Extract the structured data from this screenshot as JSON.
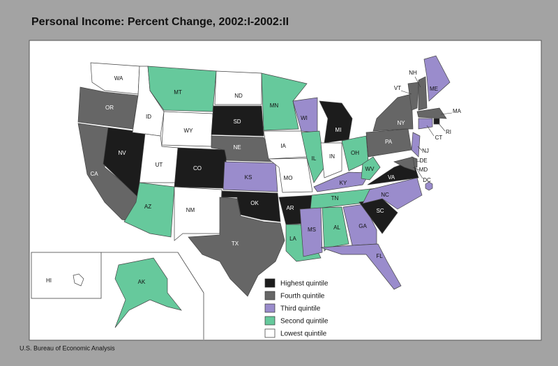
{
  "title": "Personal Income: Percent Change, 2002:I-2002:II",
  "source": "U.S. Bureau of Economic Analysis",
  "legend": [
    {
      "label": "Highest quintile",
      "color": "#1c1c1c"
    },
    {
      "label": "Fourth quintile",
      "color": "#666666"
    },
    {
      "label": "Third quintile",
      "color": "#9a8ccc"
    },
    {
      "label": "Second quintile",
      "color": "#66c99c"
    },
    {
      "label": "Lowest quintile",
      "color": "#ffffff"
    }
  ],
  "states": [
    {
      "label": "WA",
      "quintile": 4
    },
    {
      "label": "OR",
      "quintile": 1
    },
    {
      "label": "CA",
      "quintile": 1
    },
    {
      "label": "NV",
      "quintile": 0
    },
    {
      "label": "ID",
      "quintile": 4
    },
    {
      "label": "MT",
      "quintile": 3
    },
    {
      "label": "WY",
      "quintile": 4
    },
    {
      "label": "UT",
      "quintile": 4
    },
    {
      "label": "CO",
      "quintile": 0
    },
    {
      "label": "AZ",
      "quintile": 3
    },
    {
      "label": "NM",
      "quintile": 4
    },
    {
      "label": "ND",
      "quintile": 4
    },
    {
      "label": "SD",
      "quintile": 0
    },
    {
      "label": "NE",
      "quintile": 1
    },
    {
      "label": "KS",
      "quintile": 2
    },
    {
      "label": "OK",
      "quintile": 0
    },
    {
      "label": "TX",
      "quintile": 1
    },
    {
      "label": "MN",
      "quintile": 3
    },
    {
      "label": "IA",
      "quintile": 4
    },
    {
      "label": "MO",
      "quintile": 4
    },
    {
      "label": "AR",
      "quintile": 0
    },
    {
      "label": "LA",
      "quintile": 3
    },
    {
      "label": "WI",
      "quintile": 2
    },
    {
      "label": "IL",
      "quintile": 3
    },
    {
      "label": "MI",
      "quintile": 0
    },
    {
      "label": "IN",
      "quintile": 4
    },
    {
      "label": "OH",
      "quintile": 3
    },
    {
      "label": "KY",
      "quintile": 2
    },
    {
      "label": "TN",
      "quintile": 3
    },
    {
      "label": "MS",
      "quintile": 2
    },
    {
      "label": "AL",
      "quintile": 3
    },
    {
      "label": "GA",
      "quintile": 2
    },
    {
      "label": "FL",
      "quintile": 2
    },
    {
      "label": "SC",
      "quintile": 0
    },
    {
      "label": "NC",
      "quintile": 2
    },
    {
      "label": "VA",
      "quintile": 0
    },
    {
      "label": "WV",
      "quintile": 3
    },
    {
      "label": "PA",
      "quintile": 1
    },
    {
      "label": "NY",
      "quintile": 1
    },
    {
      "label": "VT",
      "quintile": 1
    },
    {
      "label": "NH",
      "quintile": 1
    },
    {
      "label": "ME",
      "quintile": 2
    },
    {
      "label": "MA",
      "quintile": 1
    },
    {
      "label": "RI",
      "quintile": 0
    },
    {
      "label": "CT",
      "quintile": 2
    },
    {
      "label": "NJ",
      "quintile": 2
    },
    {
      "label": "DE",
      "quintile": 1
    },
    {
      "label": "MD",
      "quintile": 1
    },
    {
      "label": "DC",
      "quintile": 2
    },
    {
      "label": "AK",
      "quintile": 3
    },
    {
      "label": "HI",
      "quintile": 4
    }
  ]
}
